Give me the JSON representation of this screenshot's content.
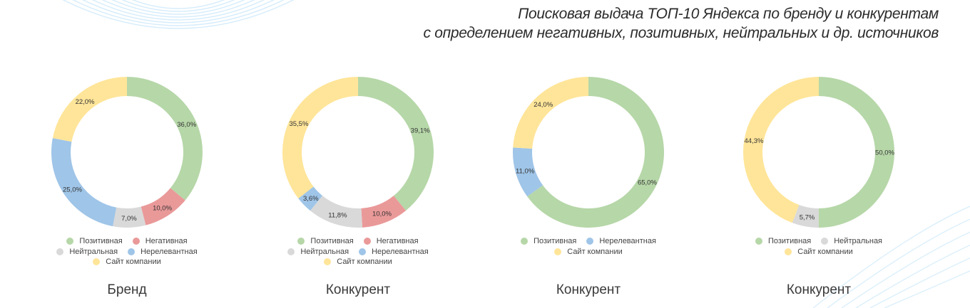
{
  "header": {
    "title_line1": "Поисковая выдача ТОП-10 Яндекса по бренду и конкурентам",
    "title_line2": "с определением негативных, позитивных, нейтральных и др. источников"
  },
  "colors": {
    "positive": "#b6d7a8",
    "negative": "#ea9999",
    "neutral": "#d9d9d9",
    "irrelevant": "#9fc5e8",
    "company_site": "#ffe599"
  },
  "panels": [
    {
      "caption": "Бренд",
      "legend_rows": [
        [
          {
            "label": "Позитивная",
            "key": "positive"
          },
          {
            "label": "Негативная",
            "key": "negative"
          }
        ],
        [
          {
            "label": "Нейтральная",
            "key": "neutral"
          },
          {
            "label": "Нерелевантная",
            "key": "irrelevant"
          }
        ],
        [
          {
            "label": "Сайт компании",
            "key": "company_site"
          }
        ]
      ]
    },
    {
      "caption": "Конкурент",
      "legend_rows": [
        [
          {
            "label": "Позитивная",
            "key": "positive"
          },
          {
            "label": "Негативная",
            "key": "negative"
          }
        ],
        [
          {
            "label": "Нейтральная",
            "key": "neutral"
          },
          {
            "label": "Нерелевантная",
            "key": "irrelevant"
          }
        ],
        [
          {
            "label": "Сайт компании",
            "key": "company_site"
          }
        ]
      ]
    },
    {
      "caption": "Конкурент",
      "legend_rows": [
        [
          {
            "label": "Позитивная",
            "key": "positive"
          },
          {
            "label": "Нерелевантная",
            "key": "irrelevant"
          }
        ],
        [
          {
            "label": "Сайт компании",
            "key": "company_site"
          }
        ]
      ]
    },
    {
      "caption": "Конкурент",
      "legend_rows": [
        [
          {
            "label": "Позитивная",
            "key": "positive"
          },
          {
            "label": "Нейтральная",
            "key": "neutral"
          }
        ],
        [
          {
            "label": "Сайт компании",
            "key": "company_site"
          }
        ]
      ]
    }
  ],
  "chart_data": [
    {
      "type": "pie",
      "subtype": "donut",
      "title": "Бренд",
      "categories": [
        "Позитивная",
        "Негативная",
        "Нейтральная",
        "Нерелевантная",
        "Сайт компании"
      ],
      "values": [
        36.0,
        10.0,
        7.0,
        25.0,
        22.0
      ],
      "labels": [
        "36,0%",
        "10,0%",
        "7,0%",
        "25,0%",
        "22,0%"
      ],
      "legend_position": "bottom"
    },
    {
      "type": "pie",
      "subtype": "donut",
      "title": "Конкурент",
      "categories": [
        "Позитивная",
        "Негативная",
        "Нейтральная",
        "Нерелевантная",
        "Сайт компании"
      ],
      "values": [
        39.1,
        10.0,
        11.8,
        3.6,
        35.5
      ],
      "labels": [
        "39,1%",
        "10,0%",
        "11,8%",
        "3,6%",
        "35,5%"
      ],
      "legend_position": "bottom"
    },
    {
      "type": "pie",
      "subtype": "donut",
      "title": "Конкурент",
      "categories": [
        "Позитивная",
        "Нерелевантная",
        "Сайт компании"
      ],
      "values": [
        65.0,
        11.0,
        24.0
      ],
      "labels": [
        "65,0%",
        "11,0%",
        "24,0%"
      ],
      "legend_position": "bottom"
    },
    {
      "type": "pie",
      "subtype": "donut",
      "title": "Конкурент",
      "categories": [
        "Позитивная",
        "Нейтральная",
        "Сайт компании"
      ],
      "values": [
        50.0,
        5.7,
        44.3
      ],
      "labels": [
        "50,0%",
        "5,7%",
        "44,3%"
      ],
      "legend_position": "bottom"
    }
  ]
}
